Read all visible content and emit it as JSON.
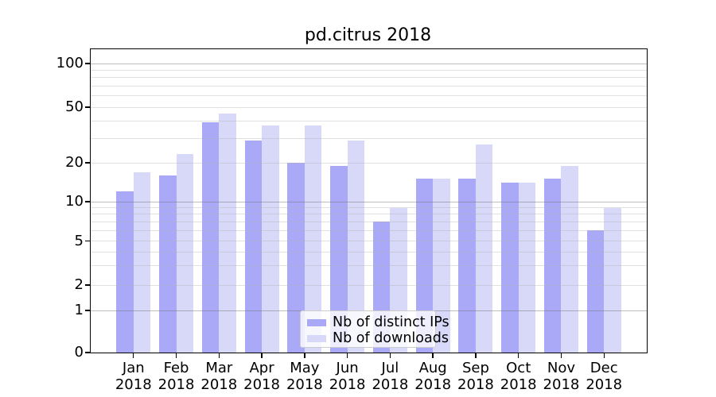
{
  "title": "pd.citrus 2018",
  "chart_data": {
    "type": "bar",
    "title": "pd.citrus 2018",
    "categories": [
      "Jan 2018",
      "Feb 2018",
      "Mar 2018",
      "Apr 2018",
      "May 2018",
      "Jun 2018",
      "Jul 2018",
      "Aug 2018",
      "Sep 2018",
      "Oct 2018",
      "Nov 2018",
      "Dec 2018"
    ],
    "month_labels": [
      "Jan",
      "Feb",
      "Mar",
      "Apr",
      "May",
      "Jun",
      "Jul",
      "Aug",
      "Sep",
      "Oct",
      "Nov",
      "Dec"
    ],
    "year_label": "2018",
    "series": [
      {
        "name": "Nb of distinct IPs",
        "color": "#a9a9f7",
        "values": [
          12,
          16,
          39,
          29,
          20,
          19,
          7,
          15,
          15,
          14,
          15,
          6
        ]
      },
      {
        "name": "Nb of downloads",
        "color": "#d8d8f9",
        "values": [
          17,
          23,
          45,
          37,
          37,
          29,
          9,
          15,
          27,
          14,
          19,
          9
        ]
      }
    ],
    "xlabel": "",
    "ylabel": "",
    "yscale": "log-like (symlog, compressed near 0)",
    "ylim": [
      0,
      130
    ],
    "yticks": [
      0,
      1,
      2,
      5,
      10,
      20,
      50,
      100
    ],
    "gridline_values": [
      1,
      2,
      3,
      4,
      5,
      6,
      7,
      8,
      9,
      10,
      20,
      30,
      40,
      50,
      60,
      70,
      80,
      90,
      100
    ],
    "emphasized_gridlines": [
      1,
      10,
      100
    ],
    "grid": true,
    "legend_position": "lower center"
  },
  "legend": {
    "items": [
      {
        "label": "Nb of distinct IPs"
      },
      {
        "label": "Nb of downloads"
      }
    ]
  }
}
